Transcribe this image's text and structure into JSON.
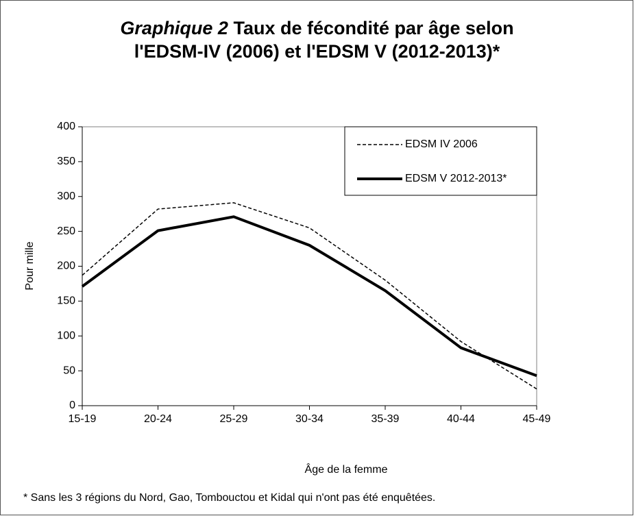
{
  "chart_data": {
    "type": "line",
    "title_label": "Graphique  2",
    "title": [
      "Taux de fécondité par âge selon",
      "l'EDSM-IV (2006) et l'EDSM V (2012-2013)*"
    ],
    "x_label": "Âge de la femme",
    "y_label": "Pour mille",
    "note": "* Sans les 3 régions du Nord, Gao, Tombouctou  et Kidal qui n'ont pas été enquêtées.",
    "categories": [
      "15-19",
      "20-24",
      "25-29",
      "30-34",
      "35-39",
      "40-44",
      "45-49"
    ],
    "series": [
      {
        "name": "EDSM IV 2006",
        "color": "#000000",
        "dash": true,
        "values": [
          187,
          282,
          291,
          255,
          180,
          92,
          24
        ]
      },
      {
        "name": "EDSM V 2012-2013*",
        "color": "#000000",
        "dash": false,
        "values": [
          171,
          251,
          271,
          230,
          165,
          83,
          43
        ]
      }
    ],
    "ylim": [
      0,
      400
    ],
    "yticks": [
      0,
      50,
      100,
      150,
      200,
      250,
      300,
      350,
      400
    ],
    "grid": false,
    "legend": "top-right"
  }
}
